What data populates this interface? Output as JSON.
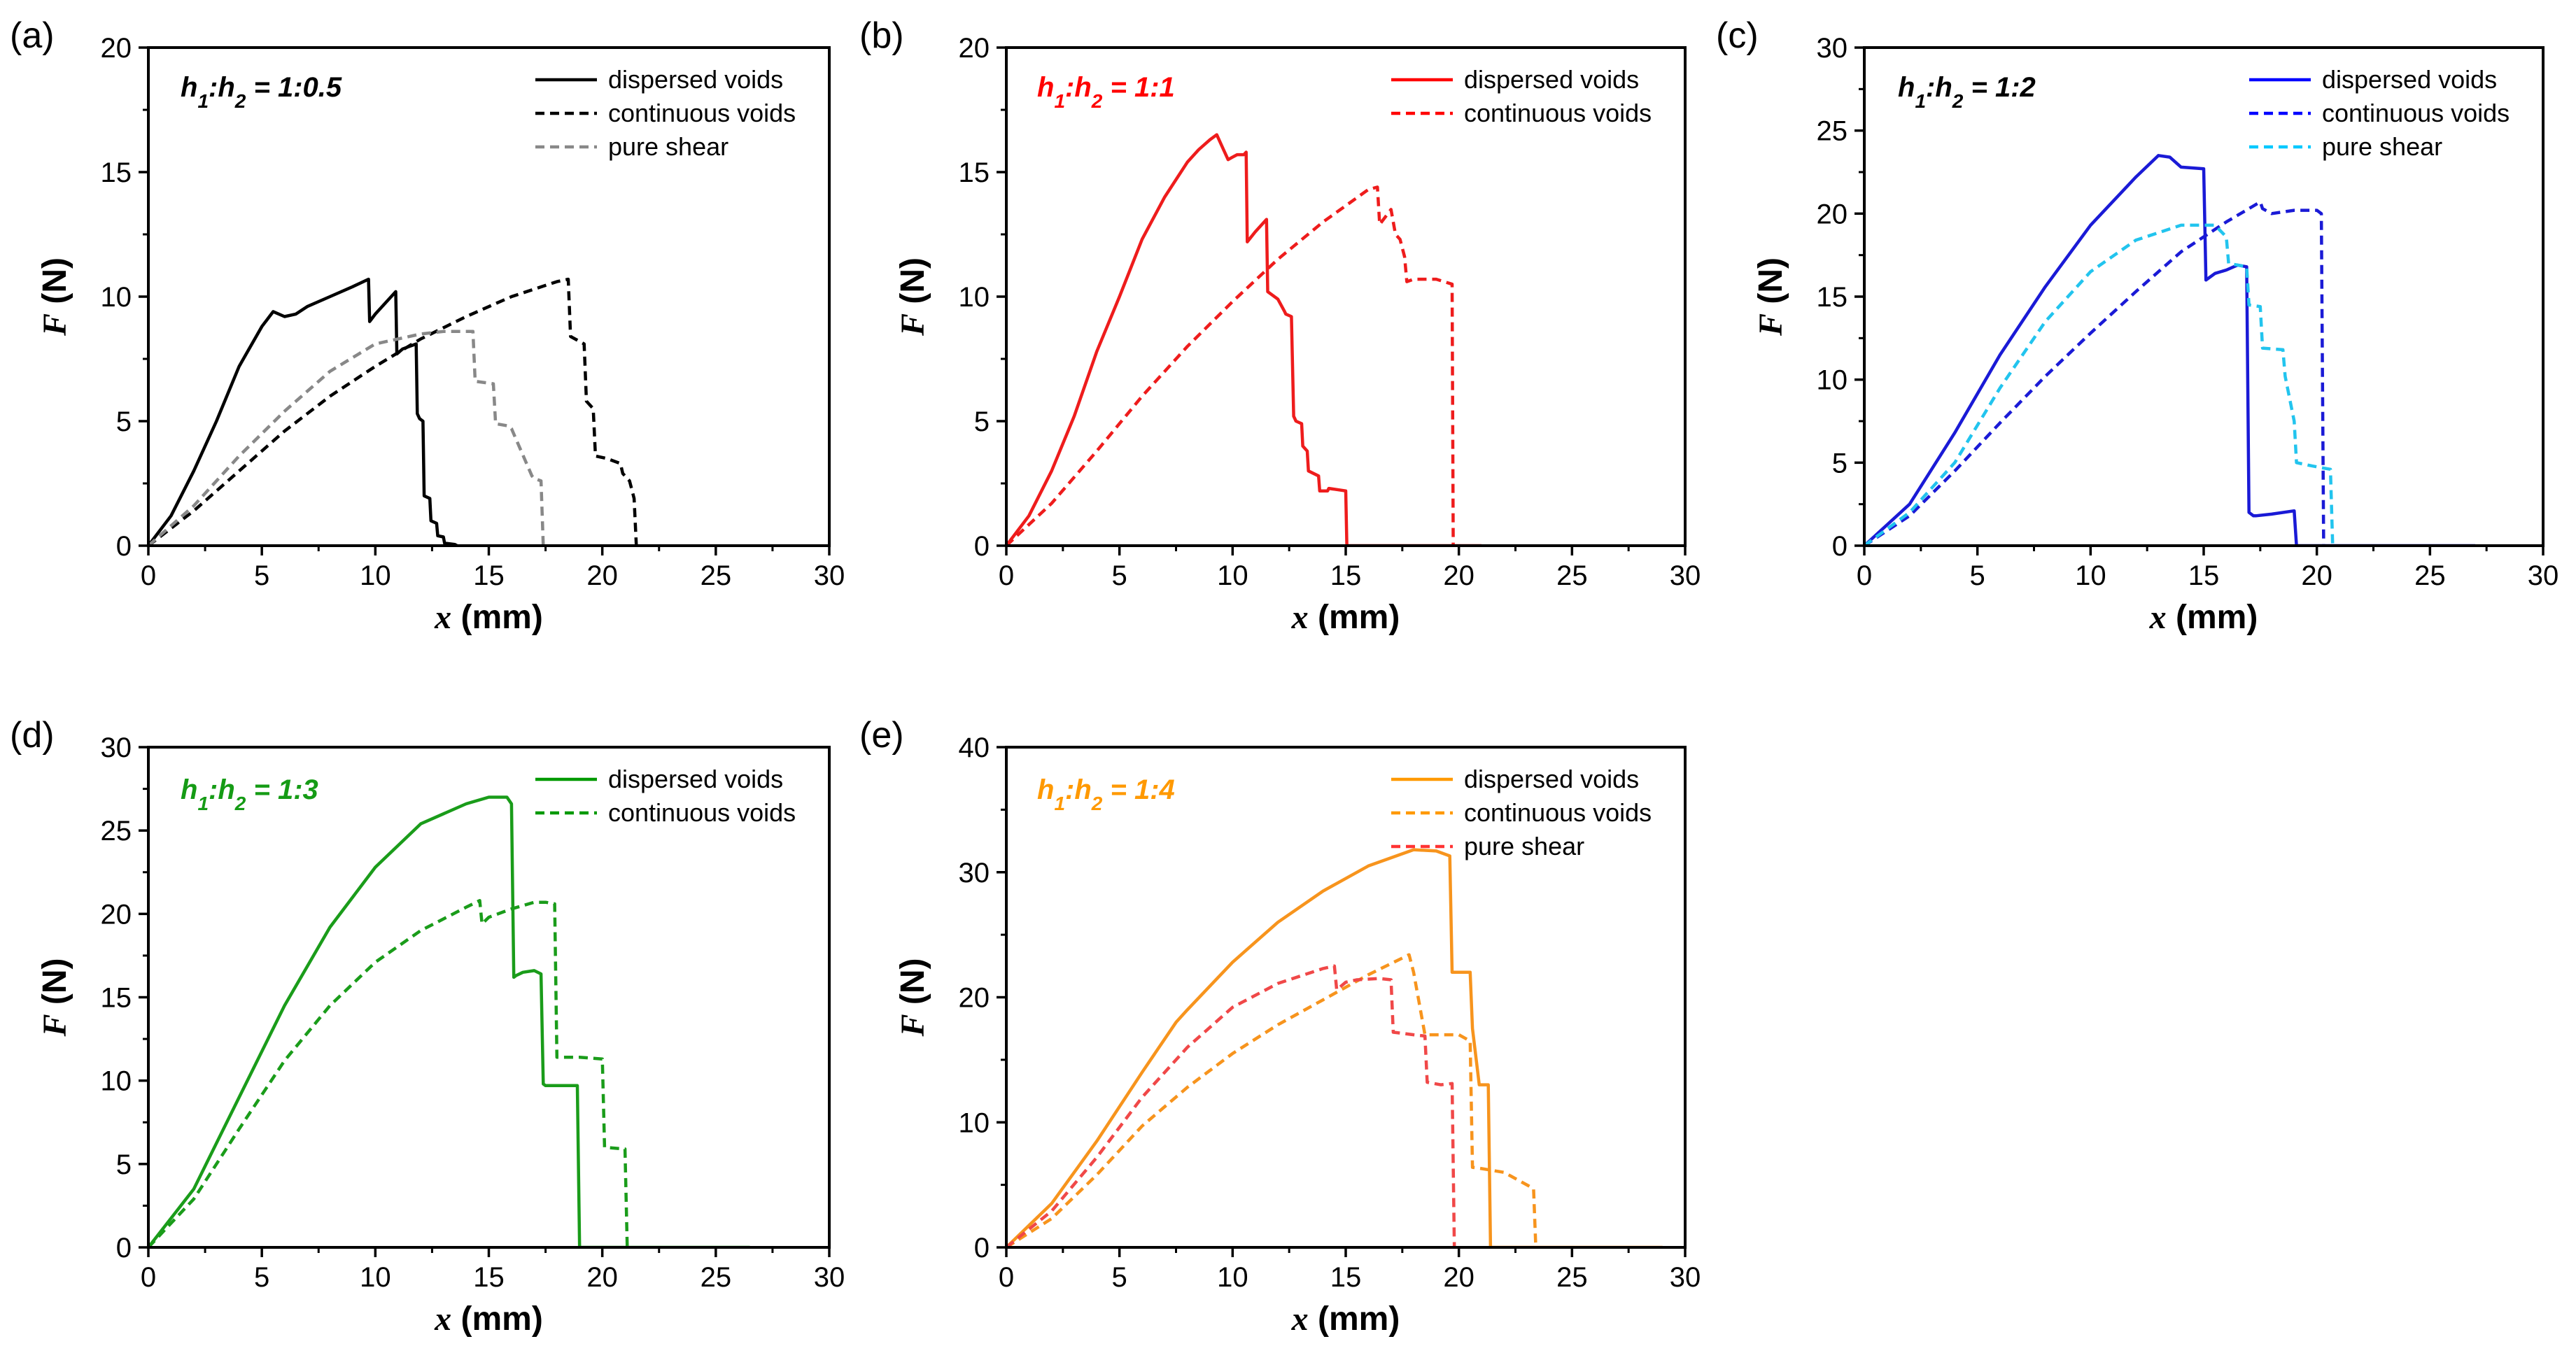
{
  "chart_data": [
    {
      "panel": "(a)",
      "type": "line",
      "ratio": {
        "h1": "h",
        "s1": "1",
        "mid": ":",
        "h2": "h",
        "s2": "2",
        "rest": " = 1:0.5"
      },
      "ratio_color": "#000000",
      "xlabel": {
        "var": "x",
        "unit": " (mm)"
      },
      "ylabel": {
        "var": "F",
        "unit": " (N)"
      },
      "xlim": [
        0,
        30
      ],
      "ylim": [
        0,
        20
      ],
      "xticks": [
        "0",
        "5",
        "10",
        "15",
        "20",
        "25",
        "30"
      ],
      "yticks": [
        "0",
        "5",
        "10",
        "15",
        "20"
      ],
      "legend_position": "top-right",
      "series": [
        {
          "name": "dispersed voids",
          "color": "#000000",
          "dash": "solid",
          "legend_color": "#000000",
          "x": [
            0,
            1,
            2,
            3,
            4,
            5,
            5.5,
            6,
            6.5,
            7,
            8,
            9,
            9.7,
            9.75,
            10,
            10.5,
            10.9,
            10.95,
            11.2,
            11.5,
            11.8,
            11.85,
            11.95,
            12.1,
            12.15,
            12.4,
            12.45,
            12.7,
            12.75,
            13,
            13.05,
            13.5,
            13.6
          ],
          "y": [
            0,
            1.2,
            3.0,
            5.0,
            7.2,
            8.8,
            9.4,
            9.2,
            9.3,
            9.6,
            10.0,
            10.4,
            10.7,
            9.0,
            9.3,
            9.8,
            10.2,
            7.7,
            7.9,
            8.0,
            8.1,
            5.3,
            5.1,
            5.0,
            2.0,
            1.9,
            1.0,
            0.9,
            0.4,
            0.35,
            0.1,
            0.05,
            0
          ]
        },
        {
          "name": "continuous voids",
          "color": "#000000",
          "dash": "dashed",
          "legend_color": "#000000",
          "x": [
            0,
            2,
            4,
            6,
            8,
            10,
            12,
            14,
            16,
            18,
            18.5,
            18.6,
            19.2,
            19.3,
            19.6,
            19.7,
            20.2,
            20.8,
            20.9,
            21.2,
            21.4,
            21.5
          ],
          "y": [
            0,
            1.4,
            3.0,
            4.6,
            6.0,
            7.2,
            8.3,
            9.2,
            10.0,
            10.6,
            10.7,
            8.4,
            8.1,
            5.8,
            5.5,
            3.6,
            3.5,
            3.3,
            2.9,
            2.6,
            1.9,
            0
          ]
        },
        {
          "name": "pure shear",
          "color": "#888888",
          "dash": "dashed",
          "legend_color": "#888888",
          "x": [
            0,
            2,
            4,
            6,
            8,
            10,
            12,
            13,
            14.3,
            14.4,
            15.2,
            15.3,
            15.9,
            16.0,
            16.9,
            17.0,
            17.3,
            17.4
          ],
          "y": [
            0,
            1.6,
            3.6,
            5.4,
            7.0,
            8.1,
            8.5,
            8.6,
            8.6,
            6.6,
            6.5,
            4.9,
            4.8,
            4.7,
            2.8,
            2.7,
            2.6,
            0
          ]
        }
      ]
    },
    {
      "panel": "(b)",
      "type": "line",
      "ratio": {
        "h1": "h",
        "s1": "1",
        "mid": ":",
        "h2": "h",
        "s2": "2",
        "rest": " = 1:1"
      },
      "ratio_color": "#ff0000",
      "xlabel": {
        "var": "x",
        "unit": " (mm)"
      },
      "ylabel": {
        "var": "F",
        "unit": " (N)"
      },
      "xlim": [
        0,
        30
      ],
      "ylim": [
        0,
        20
      ],
      "xticks": [
        "0",
        "5",
        "10",
        "15",
        "20",
        "25",
        "30"
      ],
      "yticks": [
        "0",
        "5",
        "10",
        "15",
        "20"
      ],
      "legend_position": "top-right",
      "series": [
        {
          "name": "dispersed voids",
          "color": "#ee1c1c",
          "dash": "solid",
          "legend_color": "#ff0000",
          "x": [
            0,
            1,
            2,
            3,
            4,
            5,
            6,
            7,
            8,
            8.5,
            9,
            9.3,
            9.6,
            9.8,
            10,
            10.2,
            10.5,
            10.6,
            10.65,
            11,
            11.5,
            11.55,
            12,
            12.3,
            12.35,
            12.6,
            12.7,
            12.8,
            13.05,
            13.1,
            13.3,
            13.35,
            13.8,
            13.85,
            14.2,
            14.25,
            15,
            15.05,
            21
          ],
          "y": [
            0,
            1.2,
            3.0,
            5.2,
            7.8,
            10.0,
            12.3,
            14.0,
            15.4,
            15.9,
            16.3,
            16.5,
            15.9,
            15.5,
            15.6,
            15.7,
            15.7,
            15.8,
            12.2,
            12.6,
            13.1,
            10.2,
            9.9,
            9.4,
            9.3,
            9.2,
            5.2,
            5.0,
            4.9,
            4.0,
            3.8,
            3.0,
            2.8,
            2.2,
            2.2,
            2.3,
            2.2,
            0,
            0
          ]
        },
        {
          "name": "continuous voids",
          "color": "#ee1c1c",
          "dash": "dashed",
          "legend_color": "#ff0000",
          "x": [
            0,
            2,
            4,
            6,
            8,
            10,
            12,
            14,
            16,
            16.4,
            16.5,
            17,
            17.2,
            17.4,
            17.6,
            17.7,
            18,
            19,
            19.7,
            19.75
          ],
          "y": [
            0,
            1.7,
            3.8,
            6.0,
            8.0,
            9.8,
            11.5,
            13.0,
            14.3,
            14.4,
            12.9,
            13.5,
            12.5,
            12.3,
            11.6,
            10.6,
            10.7,
            10.7,
            10.5,
            0
          ]
        }
      ]
    },
    {
      "panel": "(c)",
      "type": "line",
      "ratio": {
        "h1": "h",
        "s1": "1",
        "mid": ":",
        "h2": "h",
        "s2": "2",
        "rest": " = 1:2"
      },
      "ratio_color": "#000000",
      "xlabel": {
        "var": "x",
        "unit": " (mm)"
      },
      "ylabel": {
        "var": "F",
        "unit": " (N)"
      },
      "xlim": [
        0,
        30
      ],
      "ylim": [
        0,
        30
      ],
      "xticks": [
        "0",
        "5",
        "10",
        "15",
        "20",
        "25",
        "30"
      ],
      "yticks": [
        "0",
        "5",
        "10",
        "15",
        "20",
        "25",
        "30"
      ],
      "legend_position": "top-right",
      "series": [
        {
          "name": "dispersed voids",
          "color": "#1a1ad6",
          "dash": "solid",
          "legend_color": "#0000ff",
          "x": [
            0,
            2,
            4,
            6,
            8,
            10,
            12,
            13,
            13.5,
            14,
            15,
            15.1,
            15.5,
            16,
            16.5,
            16.9,
            17,
            17.2,
            17.3,
            18,
            19,
            19.1,
            27
          ],
          "y": [
            0,
            2.5,
            6.8,
            11.5,
            15.6,
            19.3,
            22.2,
            23.5,
            23.4,
            22.8,
            22.7,
            16.0,
            16.4,
            16.6,
            16.9,
            16.8,
            2.0,
            1.8,
            1.8,
            1.9,
            2.1,
            0,
            0
          ]
        },
        {
          "name": "continuous voids",
          "color": "#1a1ad6",
          "dash": "dashed",
          "legend_color": "#0000ff",
          "x": [
            0,
            2,
            4,
            6,
            8,
            10,
            12,
            14,
            16,
            17.5,
            17.6,
            18,
            19,
            20,
            20.2,
            20.3
          ],
          "y": [
            0,
            1.8,
            4.5,
            7.4,
            10.2,
            12.8,
            15.3,
            17.7,
            19.5,
            20.7,
            20.3,
            20.0,
            20.2,
            20.2,
            20.0,
            0
          ]
        },
        {
          "name": "pure shear",
          "color": "#22c4ee",
          "dash": "dashed",
          "legend_color": "#00c8ff",
          "x": [
            0,
            2,
            4,
            6,
            8,
            10,
            12,
            14,
            15.5,
            16,
            16.1,
            16.9,
            17,
            17.5,
            17.6,
            18.5,
            18.6,
            19,
            19.1,
            19.8,
            20.2,
            20.6,
            20.7
          ],
          "y": [
            0,
            2.0,
            5.0,
            9.5,
            13.5,
            16.5,
            18.4,
            19.3,
            19.3,
            18.6,
            17.0,
            16.8,
            14.5,
            14.4,
            11.9,
            11.8,
            10.2,
            7.5,
            5.0,
            4.8,
            4.7,
            4.6,
            0
          ]
        }
      ]
    },
    {
      "panel": "(d)",
      "type": "line",
      "ratio": {
        "h1": "h",
        "s1": "1",
        "mid": ":",
        "h2": "h",
        "s2": "2",
        "rest": " = 1:3"
      },
      "ratio_color": "#159b15",
      "xlabel": {
        "var": "x",
        "unit": " (mm)"
      },
      "ylabel": {
        "var": "F",
        "unit": " (N)"
      },
      "xlim": [
        0,
        30
      ],
      "ylim": [
        0,
        30
      ],
      "xticks": [
        "0",
        "5",
        "10",
        "15",
        "20",
        "25",
        "30"
      ],
      "yticks": [
        "0",
        "5",
        "10",
        "15",
        "20",
        "25",
        "30"
      ],
      "legend_position": "top-right",
      "series": [
        {
          "name": "dispersed voids",
          "color": "#1a9c1a",
          "dash": "solid",
          "legend_color": "#009900",
          "x": [
            0,
            2,
            4,
            6,
            8,
            10,
            12,
            14,
            15,
            15.8,
            16,
            16.1,
            16.2,
            16.5,
            17,
            17.3,
            17.4,
            17.5,
            18,
            18.9,
            19,
            26.5
          ],
          "y": [
            0,
            3.5,
            9.0,
            14.5,
            19.2,
            22.8,
            25.4,
            26.6,
            27.0,
            27.0,
            26.6,
            16.2,
            16.3,
            16.5,
            16.6,
            16.4,
            9.8,
            9.7,
            9.7,
            9.7,
            0,
            0
          ]
        },
        {
          "name": "continuous voids",
          "color": "#1a9c1a",
          "dash": "dashed",
          "legend_color": "#009900",
          "x": [
            0,
            2,
            4,
            6,
            8,
            10,
            12,
            14,
            14.6,
            14.7,
            15,
            16,
            17,
            17.5,
            17.9,
            18,
            19,
            20,
            20.1,
            21,
            21.1
          ],
          "y": [
            0,
            2.9,
            7.1,
            11.2,
            14.5,
            17.1,
            19.0,
            20.4,
            20.8,
            19.4,
            19.8,
            20.3,
            20.7,
            20.7,
            20.6,
            11.4,
            11.4,
            11.3,
            6.0,
            5.9,
            0
          ]
        }
      ]
    },
    {
      "panel": "(e)",
      "type": "line",
      "ratio": {
        "h1": "h",
        "s1": "1",
        "mid": ":",
        "h2": "h",
        "s2": "2",
        "rest": " = 1:4"
      },
      "ratio_color": "#ff9900",
      "xlabel": {
        "var": "x",
        "unit": " (mm)"
      },
      "ylabel": {
        "var": "F",
        "unit": " (N)"
      },
      "xlim": [
        0,
        30
      ],
      "ylim": [
        0,
        40
      ],
      "xticks": [
        "0",
        "5",
        "10",
        "15",
        "20",
        "25",
        "30"
      ],
      "yticks": [
        "0",
        "10",
        "20",
        "30",
        "40"
      ],
      "legend_position": "top-right",
      "series": [
        {
          "name": "dispersed voids",
          "color": "#f7941d",
          "dash": "solid",
          "legend_color": "#ff9900",
          "x": [
            0,
            2,
            4,
            6,
            7.5,
            8,
            10,
            12,
            14,
            16,
            18,
            19,
            19.6,
            19.7,
            20.5,
            20.6,
            20.9,
            21.3,
            21.4,
            29
          ],
          "y": [
            0,
            3.5,
            8.5,
            14.0,
            18.0,
            19.0,
            22.8,
            26.0,
            28.5,
            30.5,
            31.8,
            31.7,
            31.3,
            22.0,
            22.0,
            17.5,
            13.0,
            13.0,
            0,
            0
          ]
        },
        {
          "name": "continuous voids",
          "color": "#f7941d",
          "dash": "dashed",
          "legend_color": "#ff9900",
          "x": [
            0,
            2,
            4,
            6,
            8,
            10,
            12,
            14,
            16,
            17.8,
            18,
            18.5,
            20,
            20.5,
            20.6,
            21,
            22,
            23,
            23.3,
            23.4
          ],
          "y": [
            0,
            2.3,
            5.8,
            9.7,
            12.8,
            15.5,
            17.8,
            19.8,
            21.8,
            23.4,
            22.0,
            17.0,
            17.0,
            16.5,
            6.4,
            6.3,
            6.0,
            5.0,
            4.7,
            0
          ]
        },
        {
          "name": "pure shear",
          "color": "#f04848",
          "dash": "dashed",
          "legend_color": "#ff3333",
          "x": [
            0,
            2,
            4,
            6,
            8,
            10,
            12,
            14,
            14.5,
            14.6,
            15,
            15.5,
            16.5,
            17,
            17.1,
            18,
            18.5,
            18.6,
            19.2,
            19.7,
            19.8
          ],
          "y": [
            0,
            2.9,
            7.2,
            12.0,
            16.0,
            19.2,
            21.1,
            22.3,
            22.5,
            20.6,
            21.2,
            21.4,
            21.5,
            21.4,
            17.2,
            17.0,
            16.9,
            13.2,
            13.0,
            13.1,
            0
          ]
        }
      ]
    }
  ]
}
